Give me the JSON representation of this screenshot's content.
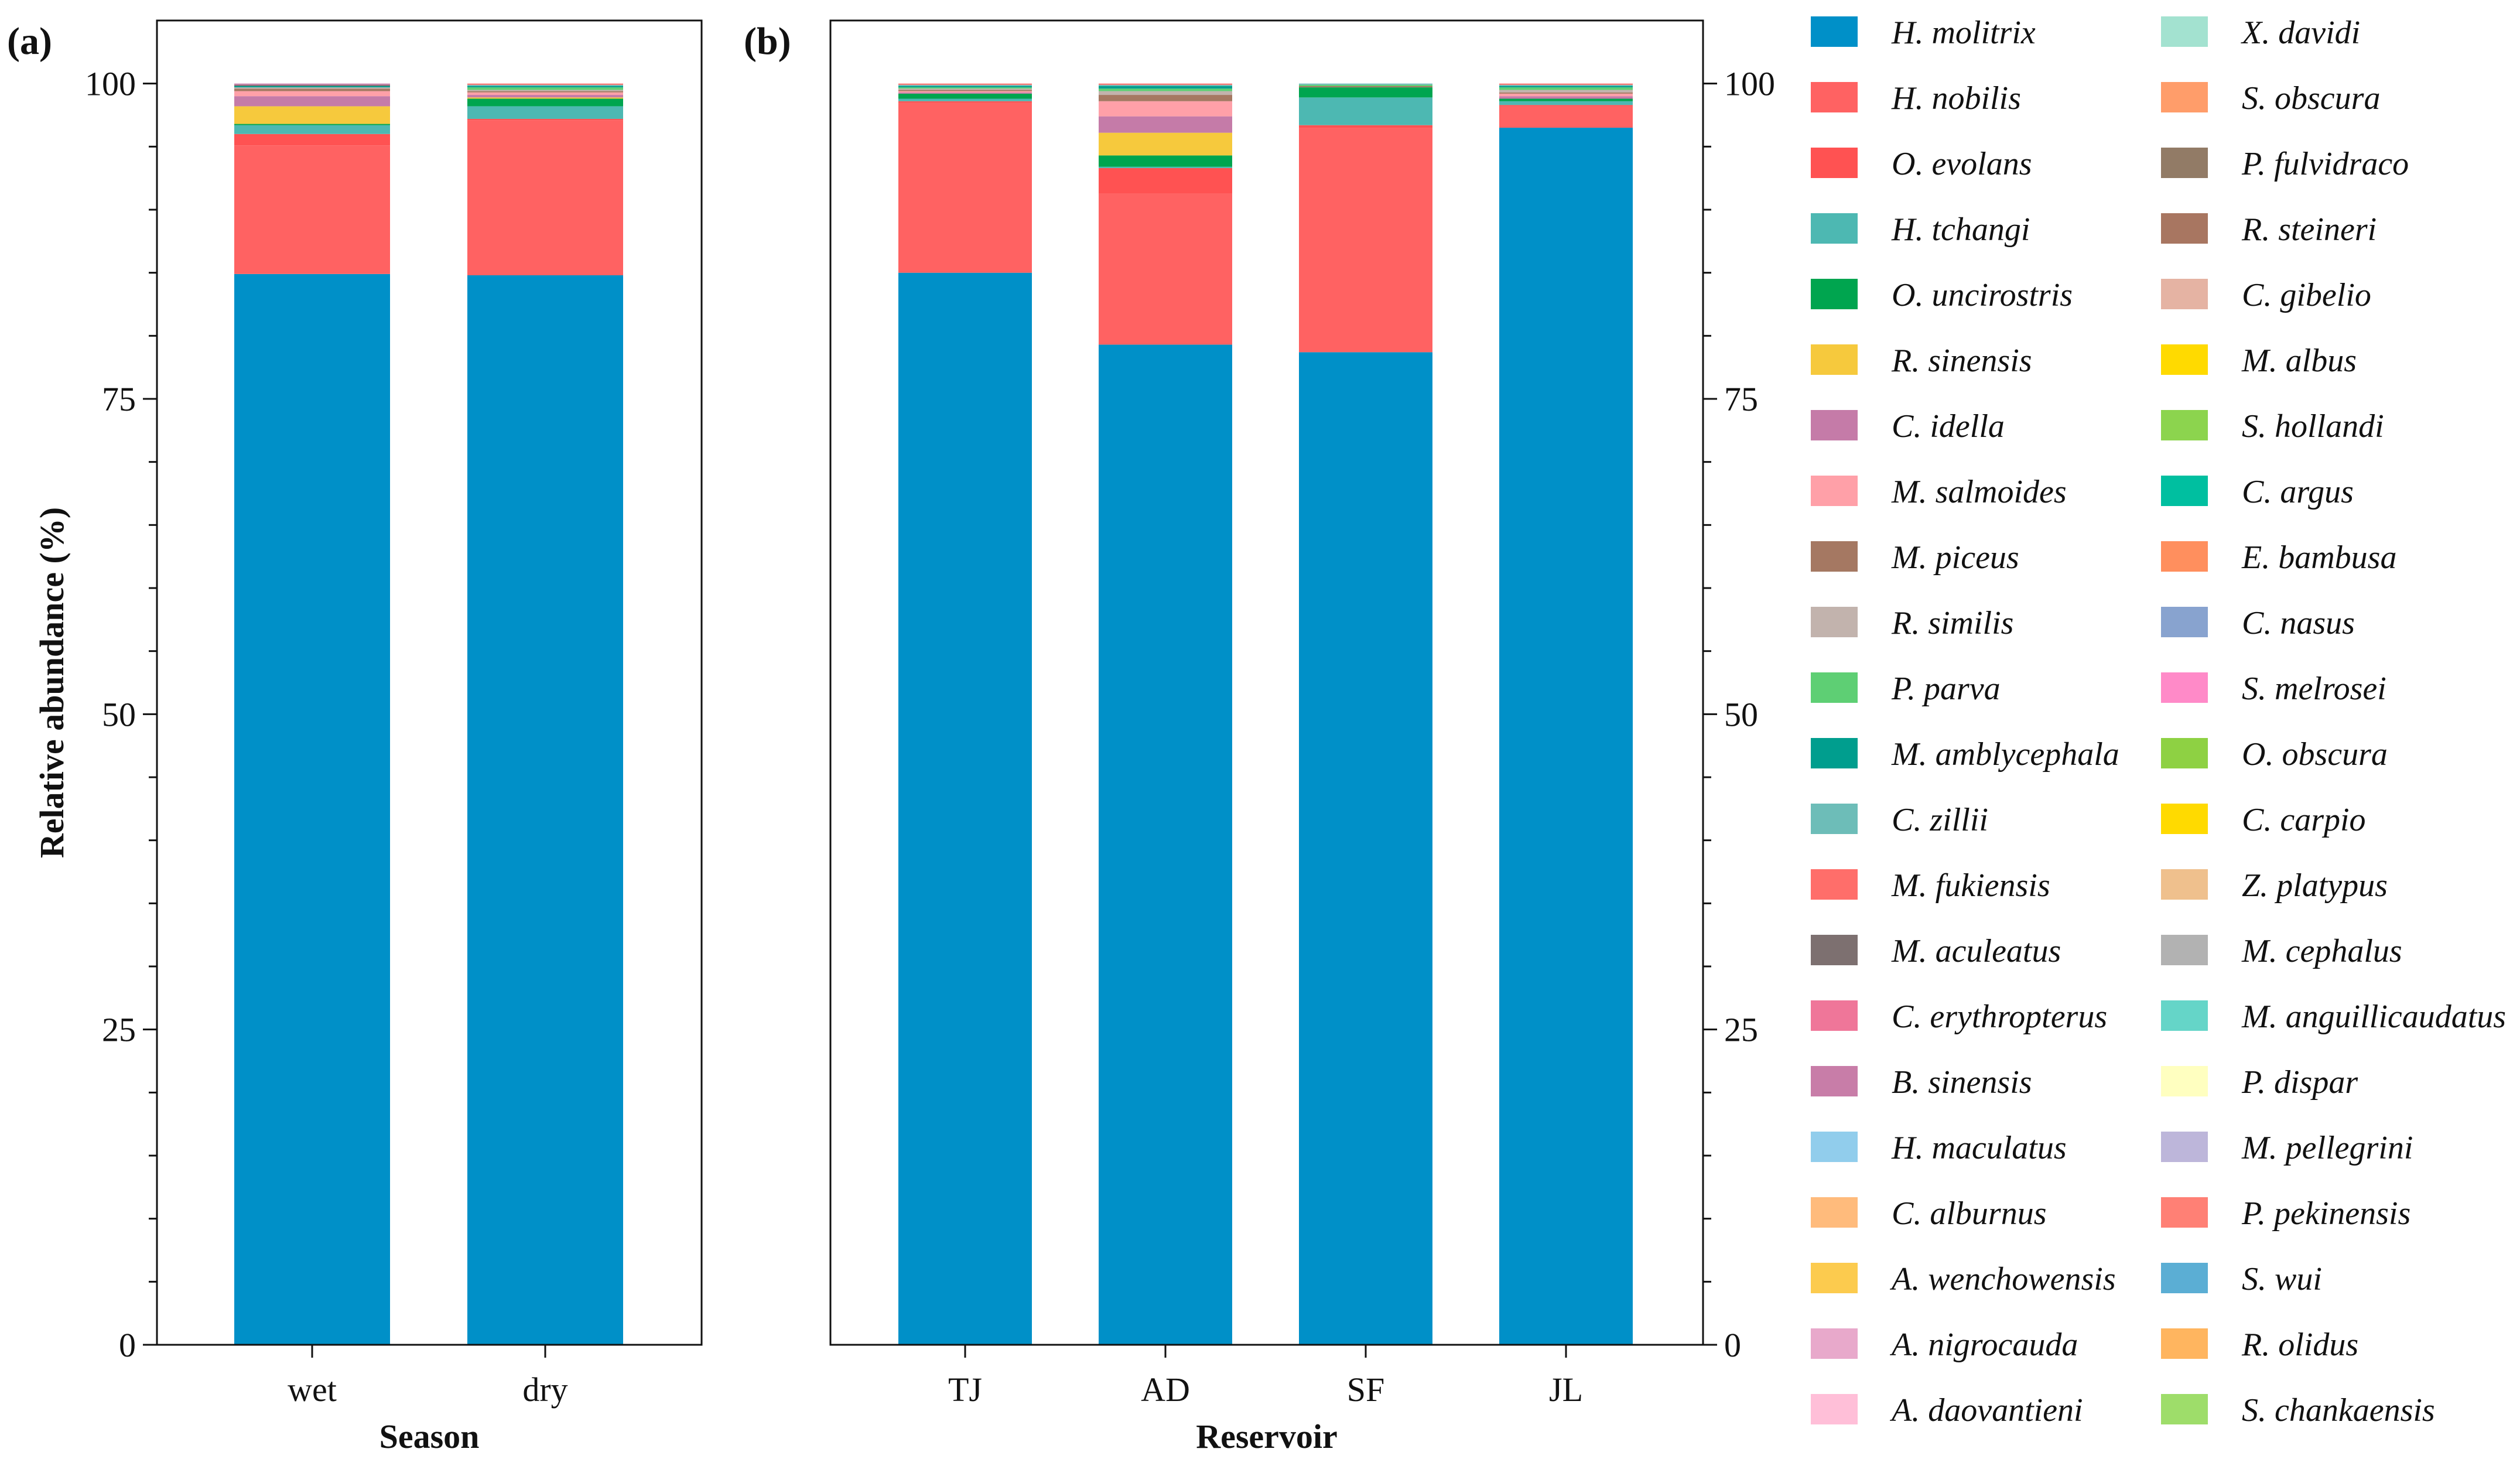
{
  "chart_data": [
    {
      "type": "bar",
      "stacked": true,
      "panel_label": "(a)",
      "xlabel": "Season",
      "ylabel": "Relative abundance (%)",
      "ylim": [
        0,
        105
      ],
      "yticks": [
        0,
        25,
        50,
        75,
        100
      ],
      "categories": [
        "wet",
        "dry"
      ],
      "series": [
        {
          "name": "H. molitrix",
          "values": [
            84.9,
            84.8
          ]
        },
        {
          "name": "H. nobilis",
          "values": [
            10.2,
            12.3
          ]
        },
        {
          "name": "O. evolans",
          "values": [
            0.9,
            0.1
          ]
        },
        {
          "name": "H. tchangi",
          "values": [
            0.7,
            1.0
          ]
        },
        {
          "name": "O. uncirostris",
          "values": [
            0.1,
            0.6
          ]
        },
        {
          "name": "R. sinensis",
          "values": [
            1.4,
            0.1
          ]
        },
        {
          "name": "C. idella",
          "values": [
            0.8,
            0.2
          ]
        },
        {
          "name": "M. salmoides",
          "values": [
            0.4,
            0.2
          ]
        },
        {
          "name": "M. piceus",
          "values": [
            0.2,
            0.1
          ]
        },
        {
          "name": "R. similis",
          "values": [
            0.1,
            0.1
          ]
        },
        {
          "name": "P. parva",
          "values": [
            0.0,
            0.2
          ]
        },
        {
          "name": "M. amblycephala",
          "values": [
            0.1,
            0.1
          ]
        },
        {
          "name": "C. zillii",
          "values": [
            0.0,
            0.1
          ]
        },
        {
          "name": "M. fukiensis",
          "values": [
            0.0,
            0.1
          ]
        },
        {
          "name": "M. aculeatus",
          "values": [
            0.1,
            0.0
          ]
        },
        {
          "name": "C. erythropterus",
          "values": [
            0.0,
            0.0
          ]
        },
        {
          "name": "B. sinensis",
          "values": [
            0.1,
            0.0
          ]
        },
        {
          "name": "H. maculatus",
          "values": [
            0.0,
            0.0
          ]
        },
        {
          "name": "C. alburnus",
          "values": [
            0.0,
            0.0
          ]
        },
        {
          "name": "A. wenchowensis",
          "values": [
            0.0,
            0.0
          ]
        }
      ]
    },
    {
      "type": "bar",
      "stacked": true,
      "panel_label": "(b)",
      "xlabel": "Reservoir",
      "ylabel": "",
      "ylim": [
        0,
        105
      ],
      "yticks": [
        0,
        25,
        50,
        75,
        100
      ],
      "y_axis_side": "right",
      "categories": [
        "TJ",
        "AD",
        "SF",
        "JL"
      ],
      "series": [
        {
          "name": "H. molitrix",
          "values": [
            85.0,
            79.3,
            78.7,
            96.5
          ]
        },
        {
          "name": "H. nobilis",
          "values": [
            13.5,
            12.0,
            17.8,
            1.7
          ]
        },
        {
          "name": "O. evolans",
          "values": [
            0.1,
            2.0,
            0.2,
            0.1
          ]
        },
        {
          "name": "H. tchangi",
          "values": [
            0.2,
            0.1,
            2.2,
            0.3
          ]
        },
        {
          "name": "O. uncirostris",
          "values": [
            0.4,
            0.9,
            0.8,
            0.2
          ]
        },
        {
          "name": "R. sinensis",
          "values": [
            0.0,
            1.8,
            0.0,
            0.0
          ]
        },
        {
          "name": "C. idella",
          "values": [
            0.1,
            1.3,
            0.0,
            0.2
          ]
        },
        {
          "name": "M. salmoides",
          "values": [
            0.1,
            1.2,
            0.0,
            0.2
          ]
        },
        {
          "name": "M. piceus",
          "values": [
            0.1,
            0.5,
            0.1,
            0.1
          ]
        },
        {
          "name": "R. similis",
          "values": [
            0.1,
            0.3,
            0.0,
            0.2
          ]
        },
        {
          "name": "P. parva",
          "values": [
            0.1,
            0.2,
            0.1,
            0.2
          ]
        },
        {
          "name": "M. amblycephala",
          "values": [
            0.1,
            0.2,
            0.0,
            0.1
          ]
        },
        {
          "name": "C. zillii",
          "values": [
            0.1,
            0.1,
            0.1,
            0.1
          ]
        },
        {
          "name": "M. fukiensis",
          "values": [
            0.1,
            0.1,
            0.0,
            0.1
          ]
        }
      ]
    }
  ],
  "legend": {
    "columns": [
      [
        "H. molitrix",
        "H. nobilis",
        "O. evolans",
        "H. tchangi",
        "O. uncirostris",
        "R. sinensis",
        "C. idella",
        "M. salmoides",
        "M. piceus",
        "R. similis",
        "P. parva",
        "M. amblycephala",
        "C. zillii",
        "M. fukiensis",
        "M. aculeatus",
        "C. erythropterus",
        "B. sinensis",
        "H. maculatus",
        "C. alburnus",
        "A. wenchowensis",
        "A. nigrocauda",
        "A. daovantieni"
      ],
      [
        "X. davidi",
        "S. obscura",
        "P. fulvidraco",
        "R. steineri",
        "C. gibelio",
        "M. albus",
        "S. hollandi",
        "C. argus",
        "E. bambusa",
        "C. nasus",
        "S. melrosei",
        "O. obscura",
        "C. carpio",
        "Z. platypus",
        "M. cephalus",
        "M. anguillicaudatus",
        "P. dispar",
        "M. pellegrini",
        "P. pekinensis",
        "S. wui",
        "R. olidus",
        "S. chankaensis"
      ]
    ],
    "colors": {
      "H. molitrix": "#0090C8",
      "H. nobilis": "#FF6262",
      "O. evolans": "#FF5252",
      "H. tchangi": "#4DB8B2",
      "O. uncirostris": "#00A54F",
      "R. sinensis": "#F6C93D",
      "C. idella": "#C57BA8",
      "M. salmoides": "#FFA0A8",
      "M. piceus": "#A57862",
      "R. similis": "#C2B3AD",
      "P. parva": "#5ECF74",
      "M. amblycephala": "#009E8E",
      "C. zillii": "#6DBDB8",
      "M. fukiensis": "#FF6E6A",
      "M. aculeatus": "#7D7070",
      "C. erythropterus": "#EF7699",
      "B. sinensis": "#C87DA8",
      "H. maculatus": "#91CDEC",
      "C. alburnus": "#FFBB7C",
      "A. wenchowensis": "#FCCB4E",
      "A. nigrocauda": "#E8A9CB",
      "A. daovantieni": "#FFBFD8",
      "X. davidi": "#A3E2D0",
      "S. obscura": "#FF9D6A",
      "P. fulvidraco": "#927B66",
      "R. steineri": "#A87661",
      "C. gibelio": "#E5B3A3",
      "M. albus": "#FFDA00",
      "S. hollandi": "#8CD44E",
      "C. argus": "#00BFA0",
      "E. bambusa": "#FF8F5E",
      "C. nasus": "#88A3CF",
      "S. melrosei": "#FF8AC8",
      "O. obscura": "#8ED143",
      "C. carpio": "#FFDA00",
      "Z. platypus": "#EFC08D",
      "M. cephalus": "#B2B2B2",
      "M. anguillicaudatus": "#65D5C8",
      "P. dispar": "#FFFFC0",
      "M. pellegrini": "#BDB6DA",
      "P. pekinensis": "#FF8075",
      "S. wui": "#5BAED4",
      "R. olidus": "#FFB55F",
      "S. chankaensis": "#9EDD6A"
    }
  }
}
